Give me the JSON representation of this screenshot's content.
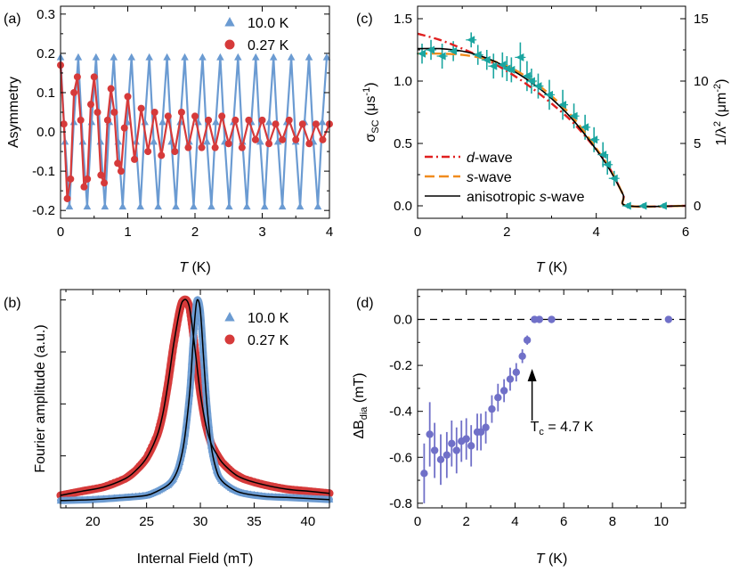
{
  "chart_data": [
    {
      "panel": "(a)",
      "type": "line",
      "xlabel": {
        "italic": "T",
        "rest": " (K)"
      },
      "ylabel": "Asymmetry",
      "xlim": [
        0,
        4
      ],
      "ylim": [
        -0.22,
        0.32
      ],
      "xticks": [
        "0",
        "1",
        "2",
        "3",
        "4"
      ],
      "yticks": [
        "-0.2",
        "-0.1",
        "0.0",
        "0.1",
        "0.2",
        "0.3"
      ],
      "series": [
        {
          "name": "10.0 K",
          "color": "#6b9bd2",
          "marker": "triangle",
          "x": [
            0.0,
            0.066,
            0.132,
            0.198,
            0.264,
            0.33,
            0.396,
            0.462,
            0.528,
            0.594,
            0.66,
            0.726,
            0.792,
            0.858,
            0.924,
            0.99,
            1.056,
            1.122,
            1.188,
            1.254,
            1.32,
            1.386,
            1.452,
            1.518,
            1.584,
            1.65,
            1.716,
            1.782,
            1.848,
            1.914,
            1.98,
            2.046,
            2.112,
            2.178,
            2.244,
            2.31,
            2.376,
            2.442,
            2.508,
            2.574,
            2.64,
            2.706,
            2.772,
            2.838,
            2.904,
            2.97,
            3.036,
            3.102,
            3.168,
            3.234,
            3.3,
            3.366,
            3.432,
            3.498,
            3.564,
            3.63,
            3.696,
            3.762,
            3.828,
            3.894,
            3.96
          ],
          "y": [
            0.19,
            -0.025,
            -0.19,
            0.025,
            0.19,
            -0.025,
            -0.19,
            0.025,
            0.19,
            -0.025,
            -0.19,
            0.025,
            0.19,
            -0.025,
            -0.19,
            0.025,
            0.19,
            -0.025,
            -0.19,
            0.025,
            0.19,
            -0.025,
            -0.19,
            0.025,
            0.19,
            -0.025,
            -0.19,
            0.025,
            0.19,
            -0.025,
            -0.19,
            0.025,
            0.19,
            -0.025,
            -0.19,
            0.025,
            0.19,
            -0.025,
            -0.19,
            0.025,
            0.19,
            -0.025,
            -0.19,
            0.025,
            0.19,
            -0.025,
            -0.19,
            0.025,
            0.19,
            -0.025,
            -0.19,
            0.025,
            0.19,
            -0.025,
            -0.19,
            0.025,
            0.19,
            -0.025,
            -0.19,
            0.025,
            0.19
          ]
        },
        {
          "name": "0.27 K",
          "color": "#d63a3a",
          "marker": "circle",
          "x": [
            0.0,
            0.05,
            0.1,
            0.15,
            0.2,
            0.25,
            0.3,
            0.35,
            0.4,
            0.45,
            0.5,
            0.55,
            0.6,
            0.65,
            0.7,
            0.75,
            0.8,
            0.85,
            0.9,
            0.95,
            1.0,
            1.1,
            1.2,
            1.3,
            1.4,
            1.5,
            1.6,
            1.7,
            1.8,
            1.9,
            2.0,
            2.1,
            2.2,
            2.3,
            2.4,
            2.5,
            2.6,
            2.7,
            2.8,
            2.9,
            3.0,
            3.1,
            3.2,
            3.3,
            3.4,
            3.5,
            3.6,
            3.7,
            3.8,
            3.9,
            4.0
          ],
          "y": [
            0.17,
            0.02,
            -0.17,
            -0.12,
            0.1,
            0.14,
            0.03,
            -0.14,
            -0.12,
            0.07,
            0.14,
            0.05,
            -0.11,
            -0.13,
            0.03,
            0.11,
            0.05,
            -0.08,
            -0.1,
            0.01,
            0.09,
            -0.07,
            0.06,
            -0.05,
            0.05,
            -0.06,
            0.04,
            -0.05,
            0.05,
            -0.04,
            0.04,
            -0.04,
            0.03,
            -0.04,
            0.04,
            -0.03,
            0.03,
            -0.04,
            0.03,
            -0.02,
            0.03,
            -0.03,
            0.02,
            -0.02,
            0.03,
            -0.02,
            0.02,
            -0.03,
            0.02,
            -0.02,
            0.02
          ]
        }
      ]
    },
    {
      "panel": "(b)",
      "type": "line",
      "xlabel": "Internal Field (mT)",
      "ylabel": "Fourier amplitude (a.u.)",
      "xlim": [
        17,
        42
      ],
      "ylim": [
        0,
        1.05
      ],
      "xticks": [
        "20",
        "25",
        "30",
        "35",
        "40"
      ],
      "series": [
        {
          "name": "10.0 K",
          "color": "#6b9bd2",
          "marker": "triangle",
          "x": [
            17,
            20,
            23,
            25,
            26,
            27,
            27.5,
            28,
            28.5,
            29,
            29.3,
            29.5,
            29.7,
            30,
            30.3,
            30.6,
            31,
            31.5,
            32,
            33,
            34,
            36,
            38,
            40,
            42
          ],
          "y": [
            0.035,
            0.04,
            0.05,
            0.06,
            0.08,
            0.11,
            0.14,
            0.2,
            0.32,
            0.55,
            0.78,
            0.92,
            1.0,
            0.95,
            0.72,
            0.5,
            0.3,
            0.18,
            0.13,
            0.09,
            0.07,
            0.055,
            0.05,
            0.045,
            0.04
          ]
        },
        {
          "name": "0.27 K",
          "color": "#d63a3a",
          "marker": "circle",
          "x": [
            17,
            19,
            21,
            23,
            24,
            25,
            26,
            26.5,
            27,
            27.5,
            28,
            28.3,
            28.7,
            29,
            29.3,
            29.6,
            30,
            30.5,
            31,
            31.5,
            32,
            33,
            34,
            36,
            38,
            40,
            42
          ],
          "y": [
            0.06,
            0.08,
            0.1,
            0.14,
            0.18,
            0.24,
            0.35,
            0.45,
            0.6,
            0.78,
            0.93,
            0.99,
            1.0,
            0.96,
            0.85,
            0.72,
            0.55,
            0.4,
            0.31,
            0.26,
            0.22,
            0.17,
            0.14,
            0.11,
            0.09,
            0.08,
            0.07
          ]
        }
      ]
    },
    {
      "panel": "(c)",
      "type": "line",
      "xlabel": {
        "italic": "T",
        "rest": " (K)"
      },
      "ylabel": "σSC (μs-1)",
      "ylabel_right": "1/λ2 (μm-2)",
      "xlim": [
        0,
        6
      ],
      "ylim": [
        -0.1,
        1.6
      ],
      "ylim_right": [
        -1.0,
        16.0
      ],
      "xticks": [
        "0",
        "2",
        "4",
        "6"
      ],
      "yticks": [
        "0.0",
        "0.5",
        "1.0",
        "1.5"
      ],
      "yticks_right": [
        "0",
        "5",
        "10",
        "15"
      ],
      "data_points": {
        "color": "#1aa5a0",
        "marker": "left-triangle",
        "x": [
          0.1,
          0.3,
          0.55,
          0.8,
          1.2,
          1.35,
          1.55,
          1.7,
          1.9,
          2.0,
          2.1,
          2.3,
          2.45,
          2.55,
          2.7,
          2.95,
          3.25,
          3.5,
          3.75,
          3.95,
          4.15,
          4.25,
          4.4,
          4.7,
          5.05,
          5.5
        ],
        "y": [
          1.22,
          1.25,
          1.2,
          1.24,
          1.33,
          1.21,
          1.17,
          1.12,
          1.13,
          1.1,
          1.09,
          1.19,
          1.04,
          1.0,
          0.96,
          0.89,
          0.81,
          0.72,
          0.63,
          0.53,
          0.41,
          0.33,
          0.22,
          0.0,
          0.0,
          0.0
        ],
        "err": [
          0.08,
          0.08,
          0.1,
          0.08,
          0.06,
          0.08,
          0.08,
          0.1,
          0.1,
          0.1,
          0.1,
          0.12,
          0.12,
          0.1,
          0.1,
          0.12,
          0.12,
          0.1,
          0.1,
          0.1,
          0.1,
          0.08,
          0.06,
          0.02,
          0.02,
          0.02
        ]
      },
      "fits": [
        {
          "name": "d-wave",
          "italic": "d",
          "rest": "-wave",
          "color": "#e02020",
          "style": "dashdot",
          "x": [
            0,
            0.5,
            1,
            1.5,
            2,
            2.5,
            3,
            3.5,
            4,
            4.3,
            4.6,
            4.7,
            6
          ],
          "y": [
            1.38,
            1.33,
            1.26,
            1.18,
            1.08,
            0.96,
            0.82,
            0.66,
            0.45,
            0.3,
            0.09,
            0.0,
            0.0
          ]
        },
        {
          "name": "s-wave",
          "italic": "s",
          "rest": "-wave",
          "color": "#f08c1e",
          "style": "dashed",
          "x": [
            0,
            0.5,
            1,
            1.5,
            2,
            2.5,
            3,
            3.5,
            4,
            4.3,
            4.6,
            4.7,
            6
          ],
          "y": [
            1.22,
            1.22,
            1.21,
            1.18,
            1.12,
            1.02,
            0.88,
            0.7,
            0.46,
            0.3,
            0.09,
            0.0,
            0.0
          ]
        },
        {
          "name": "anisotropic s-wave",
          "italic": "s",
          "pre": "anisotropic ",
          "rest": "-wave",
          "color": "#000000",
          "style": "solid",
          "x": [
            0,
            0.5,
            1,
            1.5,
            2,
            2.5,
            3,
            3.5,
            4,
            4.3,
            4.6,
            4.7,
            6
          ],
          "y": [
            1.26,
            1.26,
            1.24,
            1.19,
            1.11,
            1.0,
            0.86,
            0.68,
            0.45,
            0.29,
            0.09,
            0.0,
            0.0
          ]
        }
      ]
    },
    {
      "panel": "(d)",
      "type": "scatter",
      "xlabel": {
        "italic": "T",
        "rest": " (K)"
      },
      "ylabel": "ΔBdia (mT)",
      "xlim": [
        0,
        11
      ],
      "ylim": [
        -0.82,
        0.13
      ],
      "xticks": [
        "0",
        "2",
        "4",
        "6",
        "8",
        "10"
      ],
      "yticks": [
        "-0.8",
        "-0.6",
        "-0.4",
        "-0.2",
        "0.0"
      ],
      "reference_line": 0,
      "annotation": "Tc = 4.7 K",
      "points": {
        "color": "#7070c8",
        "x": [
          0.27,
          0.5,
          0.7,
          0.95,
          1.2,
          1.4,
          1.6,
          1.8,
          2.0,
          2.2,
          2.45,
          2.6,
          2.8,
          3.05,
          3.3,
          3.55,
          3.8,
          4.05,
          4.3,
          4.5,
          4.8,
          5.0,
          5.5,
          10.3
        ],
        "y": [
          -0.67,
          -0.5,
          -0.57,
          -0.61,
          -0.59,
          -0.54,
          -0.57,
          -0.53,
          -0.52,
          -0.55,
          -0.49,
          -0.49,
          -0.47,
          -0.39,
          -0.34,
          -0.31,
          -0.26,
          -0.23,
          -0.16,
          -0.09,
          0.0,
          0.0,
          0.0,
          0.0
        ],
        "err": [
          0.13,
          0.14,
          0.12,
          0.11,
          0.1,
          0.1,
          0.1,
          0.09,
          0.09,
          0.09,
          0.08,
          0.08,
          0.07,
          0.06,
          0.06,
          0.05,
          0.05,
          0.04,
          0.03,
          0.02,
          0.01,
          0.01,
          0.01,
          0.01
        ]
      }
    }
  ],
  "annotation": {
    "main": "T",
    "sub": "c",
    "rest": " = 4.7 K"
  },
  "axis_labels": {
    "sigma": {
      "main": "σ",
      "sub": "SC",
      "rest": " (μs",
      "sup": "-1",
      "close": ")"
    },
    "lambda": {
      "main": "1/λ",
      "sup": "2",
      "rest": " (μm",
      "sup2": "-2",
      "close": ")"
    },
    "deltaB": {
      "main": "ΔB",
      "sub": "dia",
      "rest": " (mT)"
    }
  }
}
